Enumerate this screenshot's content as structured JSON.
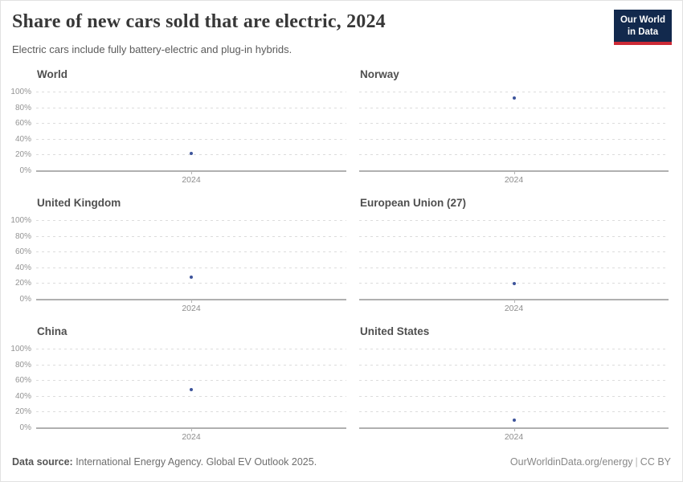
{
  "header": {
    "logo": {
      "line1": "Our World",
      "line2": "in Data"
    }
  },
  "chart_data": {
    "type": "scatter",
    "title": "Share of new cars sold that are electric, 2024",
    "subtitle": "Electric cars include fully battery-electric and plug-in hybrids.",
    "facets": true,
    "unit": "%",
    "x": [
      2024
    ],
    "x_tick_label": "2024",
    "ylim": [
      0,
      100
    ],
    "y_ticks": [
      "100%",
      "80%",
      "60%",
      "40%",
      "20%",
      "0%"
    ],
    "grid": true,
    "legend": "none",
    "point_color": "#3d549b",
    "panels": [
      {
        "title": "World",
        "x": 2024,
        "value": 22
      },
      {
        "title": "Norway",
        "x": 2024,
        "value": 92
      },
      {
        "title": "United Kingdom",
        "x": 2024,
        "value": 28
      },
      {
        "title": "European Union (27)",
        "x": 2024,
        "value": 20
      },
      {
        "title": "China",
        "x": 2024,
        "value": 48
      },
      {
        "title": "United States",
        "x": 2024,
        "value": 10
      }
    ]
  },
  "footer": {
    "datasource_label": "Data source:",
    "datasource_text": " International Energy Agency. Global EV Outlook 2025.",
    "link": "OurWorldinData.org/energy",
    "separator": "|",
    "license": "CC BY"
  }
}
